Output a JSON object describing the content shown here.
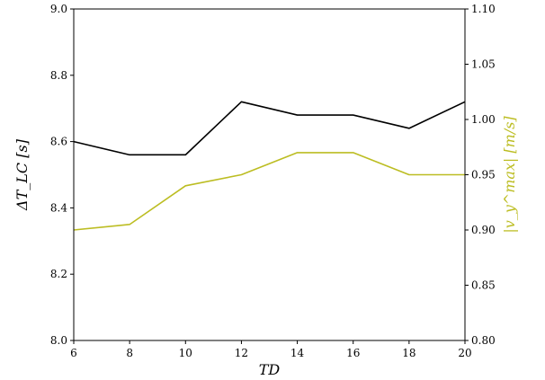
{
  "chart_data": {
    "type": "line",
    "xlabel": "TD",
    "ylabel_left": "ΔT_LC [s]",
    "ylabel_right": "|v_y^max| [m/s]",
    "x": [
      6,
      8,
      10,
      12,
      14,
      16,
      18,
      20
    ],
    "xlim": [
      6,
      20
    ],
    "xticks": [
      "6",
      "8",
      "10",
      "12",
      "14",
      "16",
      "18",
      "20"
    ],
    "ylim_left": [
      8.0,
      9.0
    ],
    "yticks_left": [
      "8.0",
      "8.2",
      "8.4",
      "8.6",
      "8.8",
      "9.0"
    ],
    "ylim_right": [
      0.8,
      1.1
    ],
    "yticks_right": [
      "0.80",
      "0.85",
      "0.90",
      "0.95",
      "1.00",
      "1.05",
      "1.10"
    ],
    "grid": false,
    "series": [
      {
        "axis": "left",
        "color": "#000000",
        "values": [
          8.6,
          8.56,
          8.56,
          8.72,
          8.68,
          8.68,
          8.64,
          8.72
        ]
      },
      {
        "axis": "right",
        "color": "#bcbd22",
        "values": [
          0.9,
          0.905,
          0.94,
          0.95,
          0.97,
          0.97,
          0.95,
          0.95
        ]
      }
    ]
  }
}
